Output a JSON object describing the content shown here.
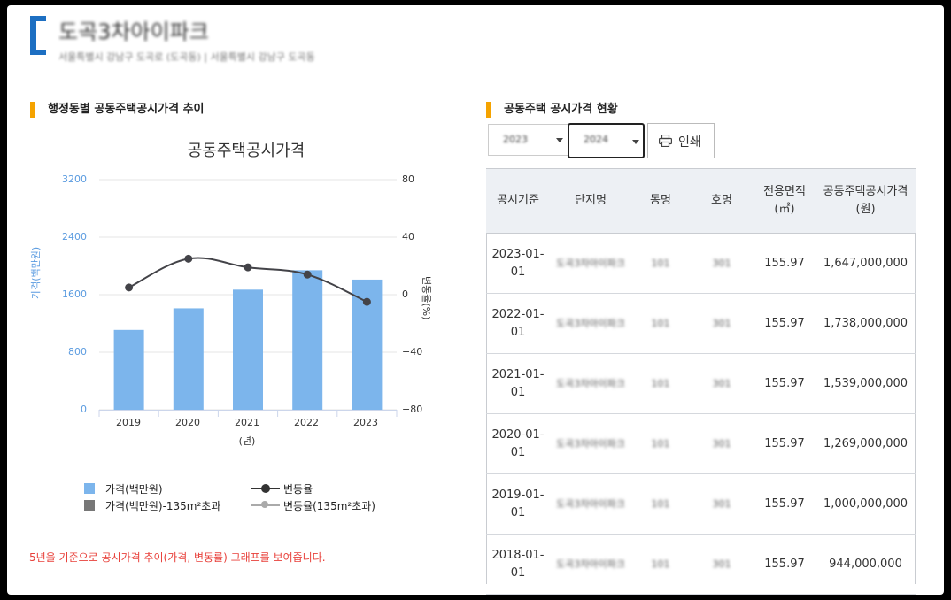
{
  "header": {
    "title": "도곡3차아이파크",
    "address": "서울특별시 강남구 도곡로 (도곡동) | 서울특별시 강남구 도곡동"
  },
  "left": {
    "section_title": "행정동별 공동주택공시가격 추이",
    "note": "5년을 기준으로 공시가격 추이(가격, 변동률) 그래프를 보여줍니다."
  },
  "legend": {
    "price": "가격(백만원)",
    "price_over": "가격(백만원)-135m²초과",
    "rate": "변동율",
    "rate_over": "변동율(135m²초과)"
  },
  "colors": {
    "bar": "#7cb5ec",
    "line": "#434348",
    "accent": "#f5a300",
    "note": "#e8413b",
    "logo": "#1d6fc2"
  },
  "chart_data": {
    "type": "bar",
    "title": "공동주택공시가격",
    "categories": [
      "2019",
      "2020",
      "2021",
      "2022",
      "2023"
    ],
    "xlabel": "(년)",
    "ylabel": "가격(백만원)",
    "y2label": "변동율(%)",
    "ylim": [
      0,
      3200
    ],
    "y2lim": [
      -80,
      80
    ],
    "yticks": [
      "0",
      "800",
      "1600",
      "2400",
      "3200"
    ],
    "y2ticks": [
      "−80",
      "−40",
      "0",
      "40",
      "80"
    ],
    "legend_position": "bottom",
    "grid": true,
    "series": [
      {
        "name": "가격(백만원)",
        "type": "bar",
        "values": [
          1110,
          1410,
          1670,
          1940,
          1810
        ]
      },
      {
        "name": "변동율",
        "type": "line",
        "axis": "right",
        "values": [
          5,
          25,
          19,
          14,
          -5
        ]
      }
    ]
  },
  "right": {
    "section_title": "공동주택 공시가격 현황",
    "year_from": "2023",
    "year_to": "2024",
    "print_label": "인쇄",
    "columns": [
      "공시기준",
      "단지명",
      "동명",
      "호명",
      "전용면적(㎡)",
      "공동주택공시가격(원)"
    ],
    "rows": [
      {
        "date": "2023-01-01",
        "complex": "도곡3차아이파크",
        "dong": "101",
        "ho": "301",
        "area": "155.97",
        "price": "1,647,000,000"
      },
      {
        "date": "2022-01-01",
        "complex": "도곡3차아이파크",
        "dong": "101",
        "ho": "301",
        "area": "155.97",
        "price": "1,738,000,000"
      },
      {
        "date": "2021-01-01",
        "complex": "도곡3차아이파크",
        "dong": "101",
        "ho": "301",
        "area": "155.97",
        "price": "1,539,000,000"
      },
      {
        "date": "2020-01-01",
        "complex": "도곡3차아이파크",
        "dong": "101",
        "ho": "301",
        "area": "155.97",
        "price": "1,269,000,000"
      },
      {
        "date": "2019-01-01",
        "complex": "도곡3차아이파크",
        "dong": "101",
        "ho": "301",
        "area": "155.97",
        "price": "1,000,000,000"
      },
      {
        "date": "2018-01-01",
        "complex": "도곡3차아이파크",
        "dong": "101",
        "ho": "301",
        "area": "155.97",
        "price": "944,000,000"
      }
    ]
  }
}
